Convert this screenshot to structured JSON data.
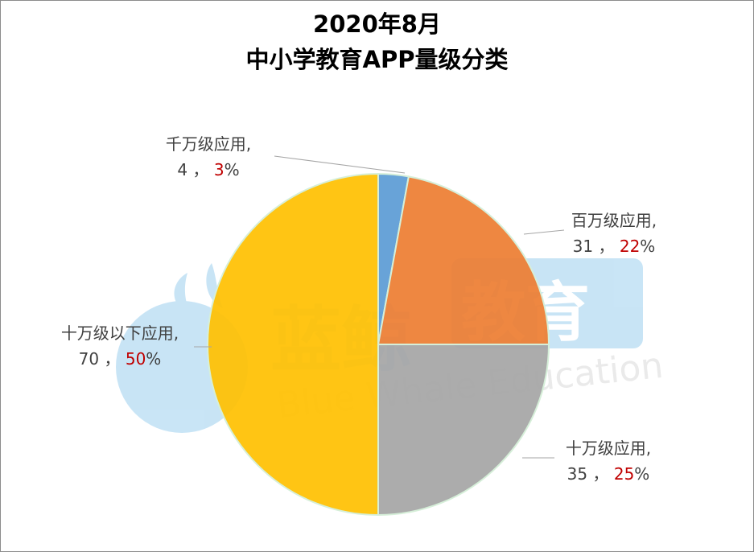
{
  "chart_data": {
    "type": "pie",
    "title_line1": "2020年8月",
    "title_line2": "中小学教育APP量级分类",
    "slices": [
      {
        "name": "千万级应用",
        "value": 4,
        "percent": "3%",
        "color": "#5b9bd5"
      },
      {
        "name": "百万级应用",
        "value": 31,
        "percent": "22%",
        "color": "#ed7d31"
      },
      {
        "name": "十万级应用",
        "value": 35,
        "percent": "25%",
        "color": "#a5a5a5"
      },
      {
        "name": "十万级以下应用",
        "value": 70,
        "percent": "50%",
        "color": "#ffc000"
      }
    ],
    "percent_color": "#c00000"
  },
  "watermark": {
    "cn_left": "蓝鲸",
    "cn_right": "教育",
    "en": "Blue Whale Education",
    "icon": "whale-logo-icon"
  }
}
